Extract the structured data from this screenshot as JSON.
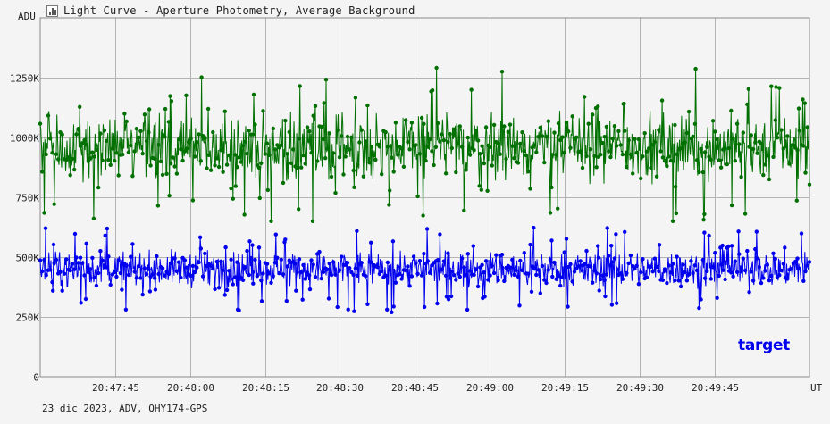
{
  "window": {
    "title": "Light Curve - Aperture Photometry, Average Background",
    "icon": "chart-icon"
  },
  "footer": {
    "info": "23 dic 2023, ADV, QHY174-GPS"
  },
  "chart_data": {
    "type": "line",
    "ylabel": "ADU",
    "xlabel": "UT",
    "ylim": [
      0,
      1500000
    ],
    "y_ticks": [
      {
        "value": 0,
        "label": "0"
      },
      {
        "value": 250000,
        "label": "250K"
      },
      {
        "value": 500000,
        "label": "500K"
      },
      {
        "value": 750000,
        "label": "750K"
      },
      {
        "value": 1000000,
        "label": "1000K"
      },
      {
        "value": 1250000,
        "label": "1250K"
      }
    ],
    "x_start": "20:47:30",
    "x_end": "20:50:04",
    "x_ticks": [
      "20:47:45",
      "20:48:00",
      "20:48:15",
      "20:48:30",
      "20:48:45",
      "20:49:00",
      "20:49:15",
      "20:49:30",
      "20:49:45"
    ],
    "grid": true,
    "markers": "circle",
    "series": [
      {
        "name": "",
        "color": "#007000",
        "mean": 960000,
        "spread": 120000,
        "min": 650000,
        "max": 1330000
      },
      {
        "name": "target",
        "color": "#0000ee",
        "mean": 450000,
        "spread": 65000,
        "min": 240000,
        "max": 660000
      }
    ],
    "legend": {
      "placement": "bottom-right",
      "entry": "target",
      "color": "#0000ee"
    }
  }
}
